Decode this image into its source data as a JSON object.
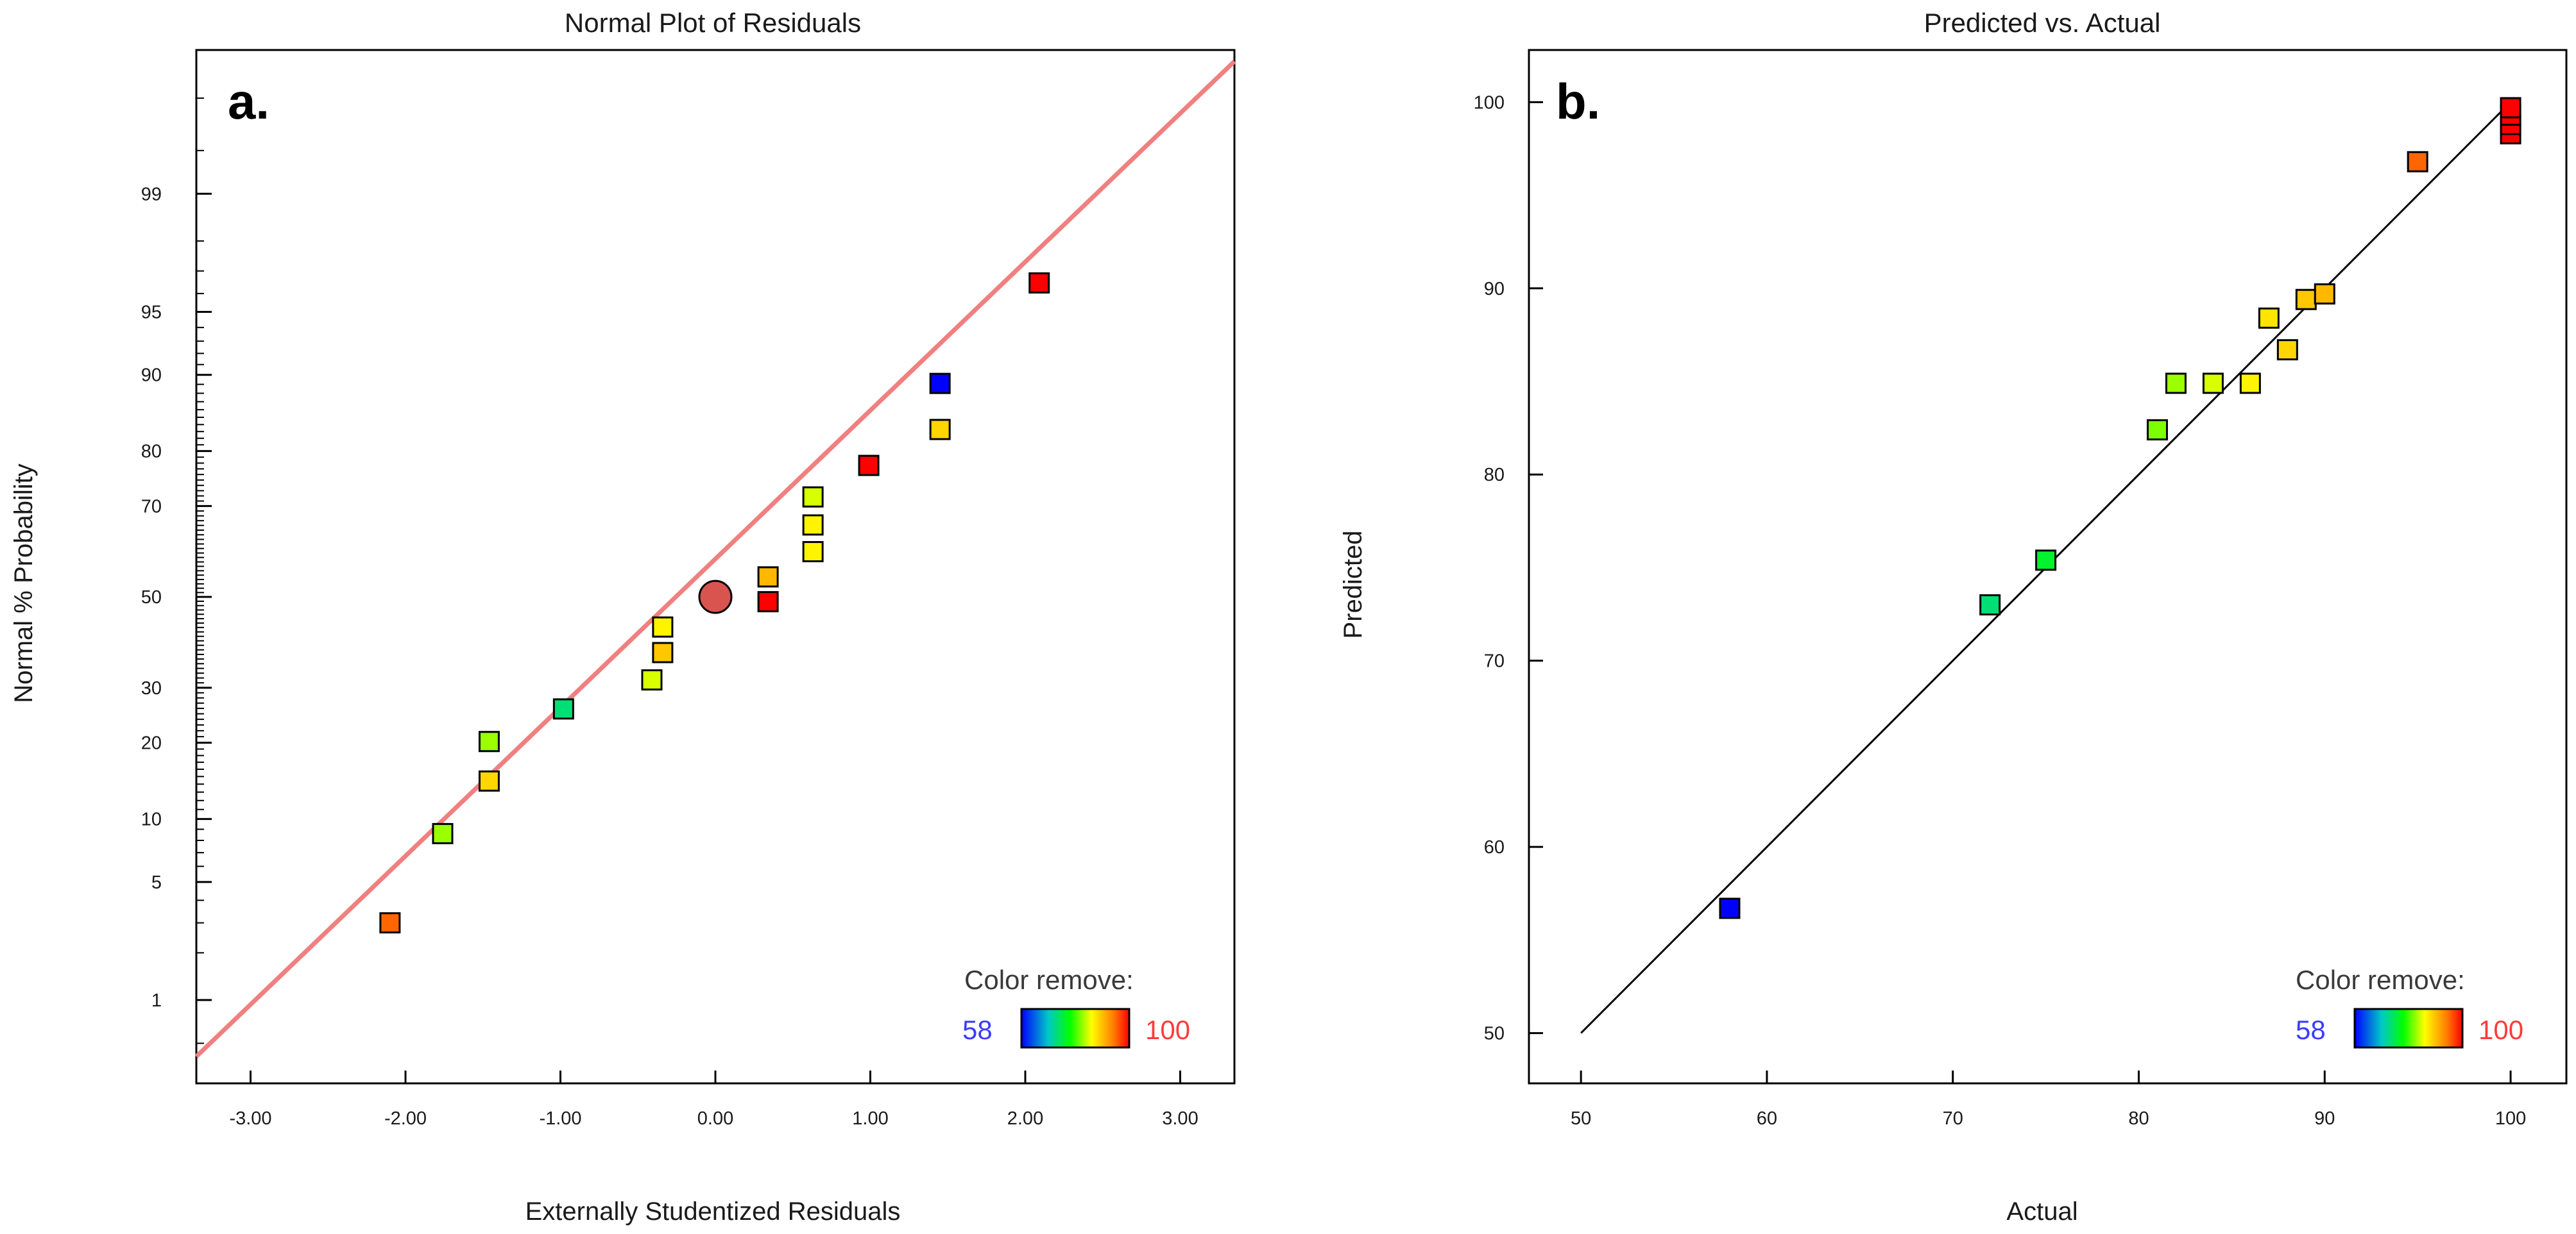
{
  "colors": {
    "scale_low": "#0000ff",
    "scale_stops": [
      "#0000ff",
      "#00c8c8",
      "#00ff00",
      "#ffff00",
      "#ff8000",
      "#ff0000"
    ],
    "fit_line_a": "#f08080",
    "fit_line_b": "#000000",
    "center_point": "#d9534f"
  },
  "chart_data": [
    {
      "panel_label": "a.",
      "type": "scatter",
      "title": "Normal Plot of Residuals",
      "xlabel": "Externally Studentized Residuals",
      "ylabel": "Normal % Probability",
      "x_scale": "linear",
      "y_scale": "normal-probability",
      "xlim": [
        -3.35,
        3.35
      ],
      "ylim": [
        0.25,
        99.92
      ],
      "x_ticks": [
        -3,
        -2,
        -1,
        0,
        1,
        2,
        3
      ],
      "x_tick_labels": [
        "-3.00",
        "-2.00",
        "-1.00",
        "0.00",
        "1.00",
        "2.00",
        "3.00"
      ],
      "y_ticks": [
        1,
        5,
        10,
        20,
        30,
        50,
        70,
        80,
        90,
        95,
        99
      ],
      "y_tick_labels": [
        "1",
        "5",
        "10",
        "20",
        "30",
        "50",
        "70",
        "80",
        "90",
        "95",
        "99"
      ],
      "fit_line": {
        "x": [
          -3.35,
          3.35
        ],
        "y": [
          0.4,
          99.9
        ]
      },
      "center_marker": {
        "x": 0.0,
        "y": 50
      },
      "points": [
        {
          "x": -2.1,
          "y": 3.0,
          "color_value": 95
        },
        {
          "x": -1.76,
          "y": 8.6,
          "color_value": 82
        },
        {
          "x": -1.46,
          "y": 14.4,
          "color_value": 88
        },
        {
          "x": -1.46,
          "y": 20.2,
          "color_value": 82
        },
        {
          "x": -0.98,
          "y": 25.9,
          "color_value": 72
        },
        {
          "x": -0.41,
          "y": 31.6,
          "color_value": 84
        },
        {
          "x": -0.34,
          "y": 37.4,
          "color_value": 89
        },
        {
          "x": -0.34,
          "y": 43.1,
          "color_value": 86
        },
        {
          "x": 0.34,
          "y": 48.9,
          "color_value": 100
        },
        {
          "x": 0.34,
          "y": 54.6,
          "color_value": 90
        },
        {
          "x": 0.63,
          "y": 60.3,
          "color_value": 86
        },
        {
          "x": 0.63,
          "y": 66.1,
          "color_value": 86
        },
        {
          "x": 0.63,
          "y": 71.8,
          "color_value": 84
        },
        {
          "x": 0.99,
          "y": 77.6,
          "color_value": 100
        },
        {
          "x": 1.45,
          "y": 83.3,
          "color_value": 88
        },
        {
          "x": 1.45,
          "y": 89.1,
          "color_value": 58
        },
        {
          "x": 2.09,
          "y": 96.5,
          "color_value": 100
        }
      ],
      "legend": {
        "title": "Color remove:",
        "min_label": "58",
        "max_label": "100",
        "position": "bottom-right"
      }
    },
    {
      "panel_label": "b.",
      "type": "scatter",
      "title": "Predicted vs. Actual",
      "xlabel": "Actual",
      "ylabel": "Predicted",
      "xlim": [
        47.2,
        103
      ],
      "ylim": [
        47.3,
        102.8
      ],
      "x_ticks": [
        50,
        60,
        70,
        80,
        90,
        100
      ],
      "x_tick_labels": [
        "50",
        "60",
        "70",
        "80",
        "90",
        "100"
      ],
      "y_ticks": [
        50,
        60,
        70,
        80,
        90,
        100
      ],
      "y_tick_labels": [
        "50",
        "60",
        "70",
        "80",
        "90",
        "100"
      ],
      "fit_line": {
        "x": [
          50,
          100
        ],
        "y": [
          50,
          100
        ]
      },
      "points": [
        {
          "x": 58,
          "y": 56.7,
          "color_value": 58
        },
        {
          "x": 72,
          "y": 73.0,
          "color_value": 72
        },
        {
          "x": 75,
          "y": 75.4,
          "color_value": 75
        },
        {
          "x": 81,
          "y": 82.4,
          "color_value": 81
        },
        {
          "x": 82,
          "y": 84.9,
          "color_value": 82
        },
        {
          "x": 84,
          "y": 84.9,
          "color_value": 84
        },
        {
          "x": 86,
          "y": 84.9,
          "color_value": 86
        },
        {
          "x": 87,
          "y": 88.4,
          "color_value": 87
        },
        {
          "x": 88,
          "y": 86.7,
          "color_value": 88
        },
        {
          "x": 89,
          "y": 89.4,
          "color_value": 89
        },
        {
          "x": 90,
          "y": 89.7,
          "color_value": 90
        },
        {
          "x": 95,
          "y": 96.8,
          "color_value": 95
        },
        {
          "x": 100,
          "y": 98.3,
          "color_value": 100
        },
        {
          "x": 100,
          "y": 98.8,
          "color_value": 100
        },
        {
          "x": 100,
          "y": 99.3,
          "color_value": 100
        },
        {
          "x": 100,
          "y": 99.7,
          "color_value": 100
        }
      ],
      "legend": {
        "title": "Color remove:",
        "min_label": "58",
        "max_label": "100",
        "position": "bottom-right"
      }
    }
  ]
}
